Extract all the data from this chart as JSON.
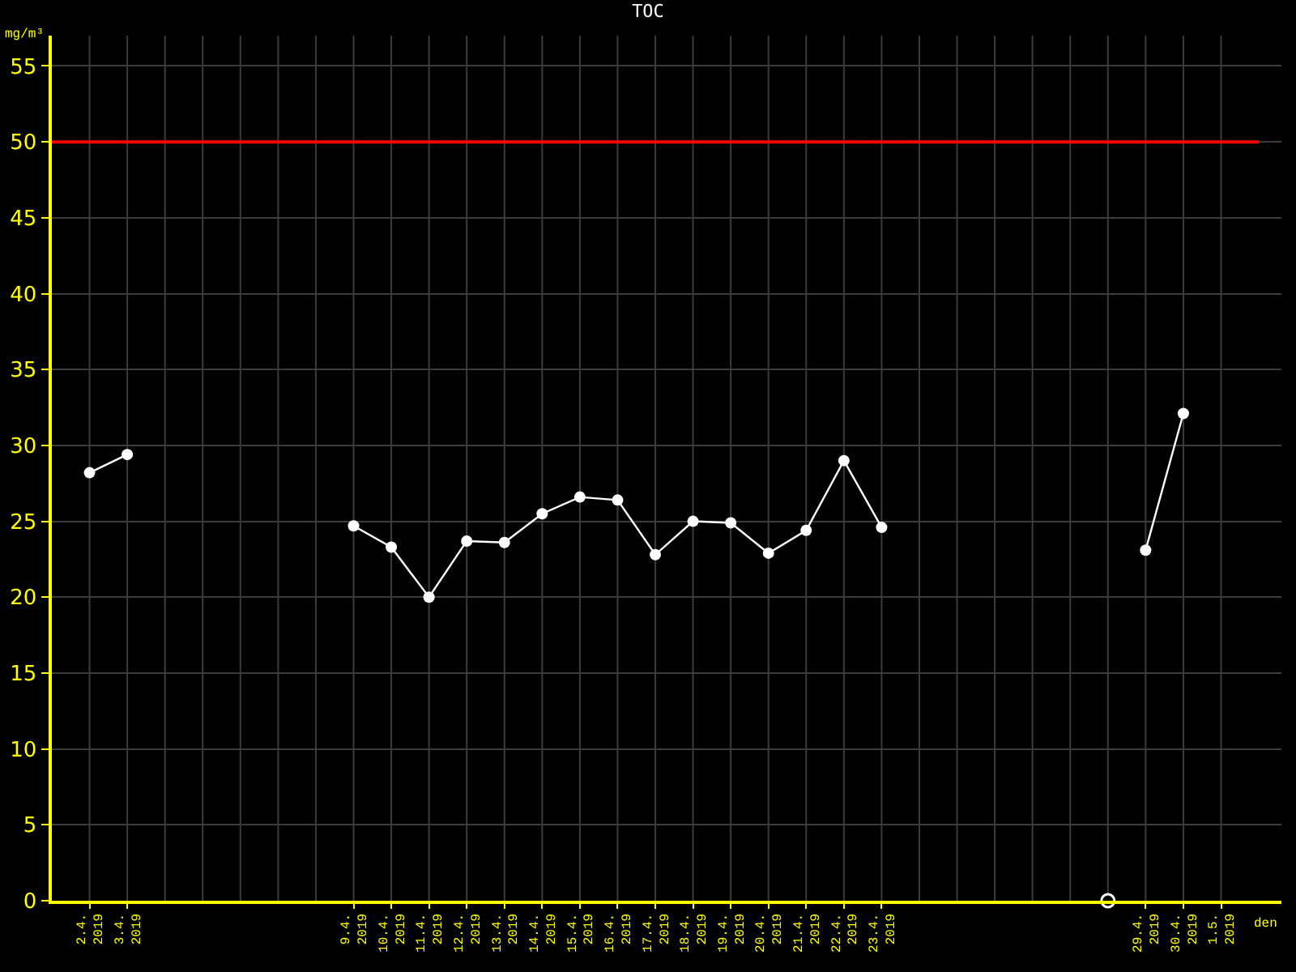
{
  "chart_data": {
    "type": "line",
    "title": "TOC",
    "xlabel": "den",
    "ylabel": "mg/m³",
    "categories": [
      "2.4.\n2019",
      "3.4.\n2019",
      null,
      null,
      null,
      null,
      null,
      "9.4.\n2019",
      "10.4.\n2019",
      "11.4.\n2019",
      "12.4.\n2019",
      "13.4.\n2019",
      "14.4.\n2019",
      "15.4.\n2019",
      "16.4.\n2019",
      "17.4.\n2019",
      "18.4.\n2019",
      "19.4.\n2019",
      "20.4.\n2019",
      "21.4.\n2019",
      "22.4.\n2019",
      "23.4.\n2019",
      null,
      null,
      null,
      null,
      null,
      null,
      "29.4.\n2019",
      "30.4.\n2019",
      "1.5.\n2019"
    ],
    "series": [
      {
        "color": "#ffffff",
        "values": [
          28.2,
          29.4,
          null,
          null,
          null,
          null,
          null,
          24.7,
          23.3,
          20.0,
          23.7,
          23.6,
          25.5,
          26.6,
          26.4,
          22.8,
          25.0,
          24.9,
          22.9,
          24.4,
          29.0,
          24.6,
          null,
          null,
          null,
          null,
          null,
          null,
          23.1,
          32.1,
          null
        ]
      },
      {
        "type": "scatter",
        "color": "#ffffff",
        "values": [
          null,
          null,
          null,
          null,
          null,
          null,
          null,
          null,
          null,
          null,
          null,
          null,
          null,
          null,
          null,
          null,
          null,
          null,
          null,
          null,
          null,
          null,
          null,
          null,
          null,
          null,
          null,
          0,
          null,
          null,
          null
        ]
      }
    ],
    "ylim": [
      0,
      57
    ],
    "yticks": [
      0,
      5,
      10,
      15,
      20,
      25,
      30,
      35,
      40,
      45,
      50,
      55
    ],
    "ref_lines": [
      {
        "axis": "y",
        "value": 50,
        "color": "#ff0000"
      }
    ],
    "grid": true,
    "marker": "circle",
    "line_style": "solid"
  }
}
